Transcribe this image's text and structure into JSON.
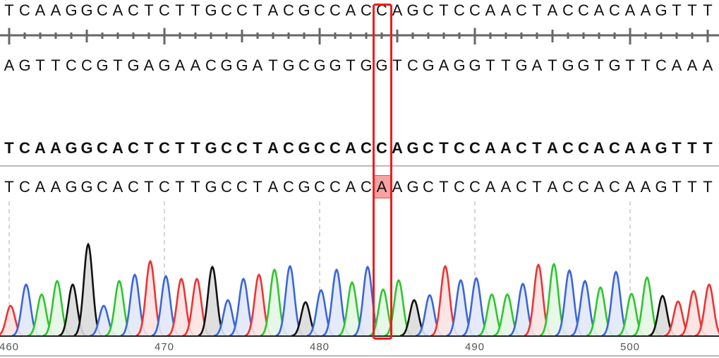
{
  "reference": {
    "forward": "TCAAGGCACTCTTGCCTACGCCACCAGCTCCAACTACCACAAGTTT",
    "complement": "AGTTCCGTGAGAACGGATGCGGTGGTCGAGGTTGATGGTGTTCAAA"
  },
  "alignment": {
    "consensus": "TCAAGGCACTCTTGCCTACGCCACCAGCTCCAACTACCACAAGTTT",
    "read": "TCAAGGCACTCTTGCCTACGCCACAAGCTCCAACTACCACAAGTTT"
  },
  "selection": {
    "position": 484,
    "reference_base": "C",
    "read_base": "A"
  },
  "colors": {
    "A": "#2ec52e",
    "C": "#3a66d8",
    "G": "#111111",
    "T": "#ee3333",
    "selection": "#ee1c1c",
    "mismatch_fill": "#f6a3a3"
  },
  "chart_data": {
    "type": "line",
    "description_type": "chromatogram",
    "start_position": 460,
    "axis_labels": [
      "460",
      "470",
      "480",
      "490",
      "500"
    ],
    "grid": "dashed vertical every 10 bases",
    "peaks": [
      43,
      73,
      59,
      78,
      73,
      130,
      43,
      78,
      87,
      106,
      85,
      81,
      81,
      98,
      51,
      81,
      87,
      94,
      99,
      48,
      65,
      94,
      76,
      98,
      66,
      79,
      51,
      58,
      99,
      79,
      82,
      59,
      59,
      74,
      101,
      102,
      93,
      78,
      69,
      91,
      60,
      83,
      57,
      49,
      64,
      73
    ]
  }
}
